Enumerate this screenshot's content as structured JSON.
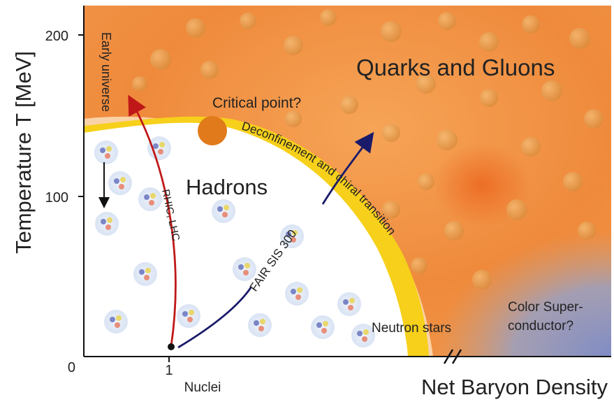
{
  "axes": {
    "y_title": "Temperature T [MeV]",
    "x_title": "Net Baryon Density",
    "y_ticks": [
      "200",
      "100",
      "0"
    ],
    "x_tick": "1",
    "x_tick_sublabel": "Nuclei"
  },
  "phases": {
    "qgp": "Quarks and Gluons",
    "hadrons": "Hadrons",
    "color_super_line1": "Color Super-",
    "color_super_line2": "conductor?",
    "neutron_stars": "Neutron stars"
  },
  "annotations": {
    "critical_point": "Critical point?",
    "early_universe": "Early universe",
    "rhic_lhc": "RHIC, LHC",
    "fair": "FAIR SIS 300",
    "transition": "Deconfinement and chiral transition"
  },
  "colors": {
    "qgp_orange": "#f08a3a",
    "transition_yellow": "#f5d21c",
    "critical_point": "#e07a1a",
    "color_super_blue": "#8a96c8",
    "arrow_red": "#c01818",
    "arrow_navy": "#1a1a6a"
  }
}
